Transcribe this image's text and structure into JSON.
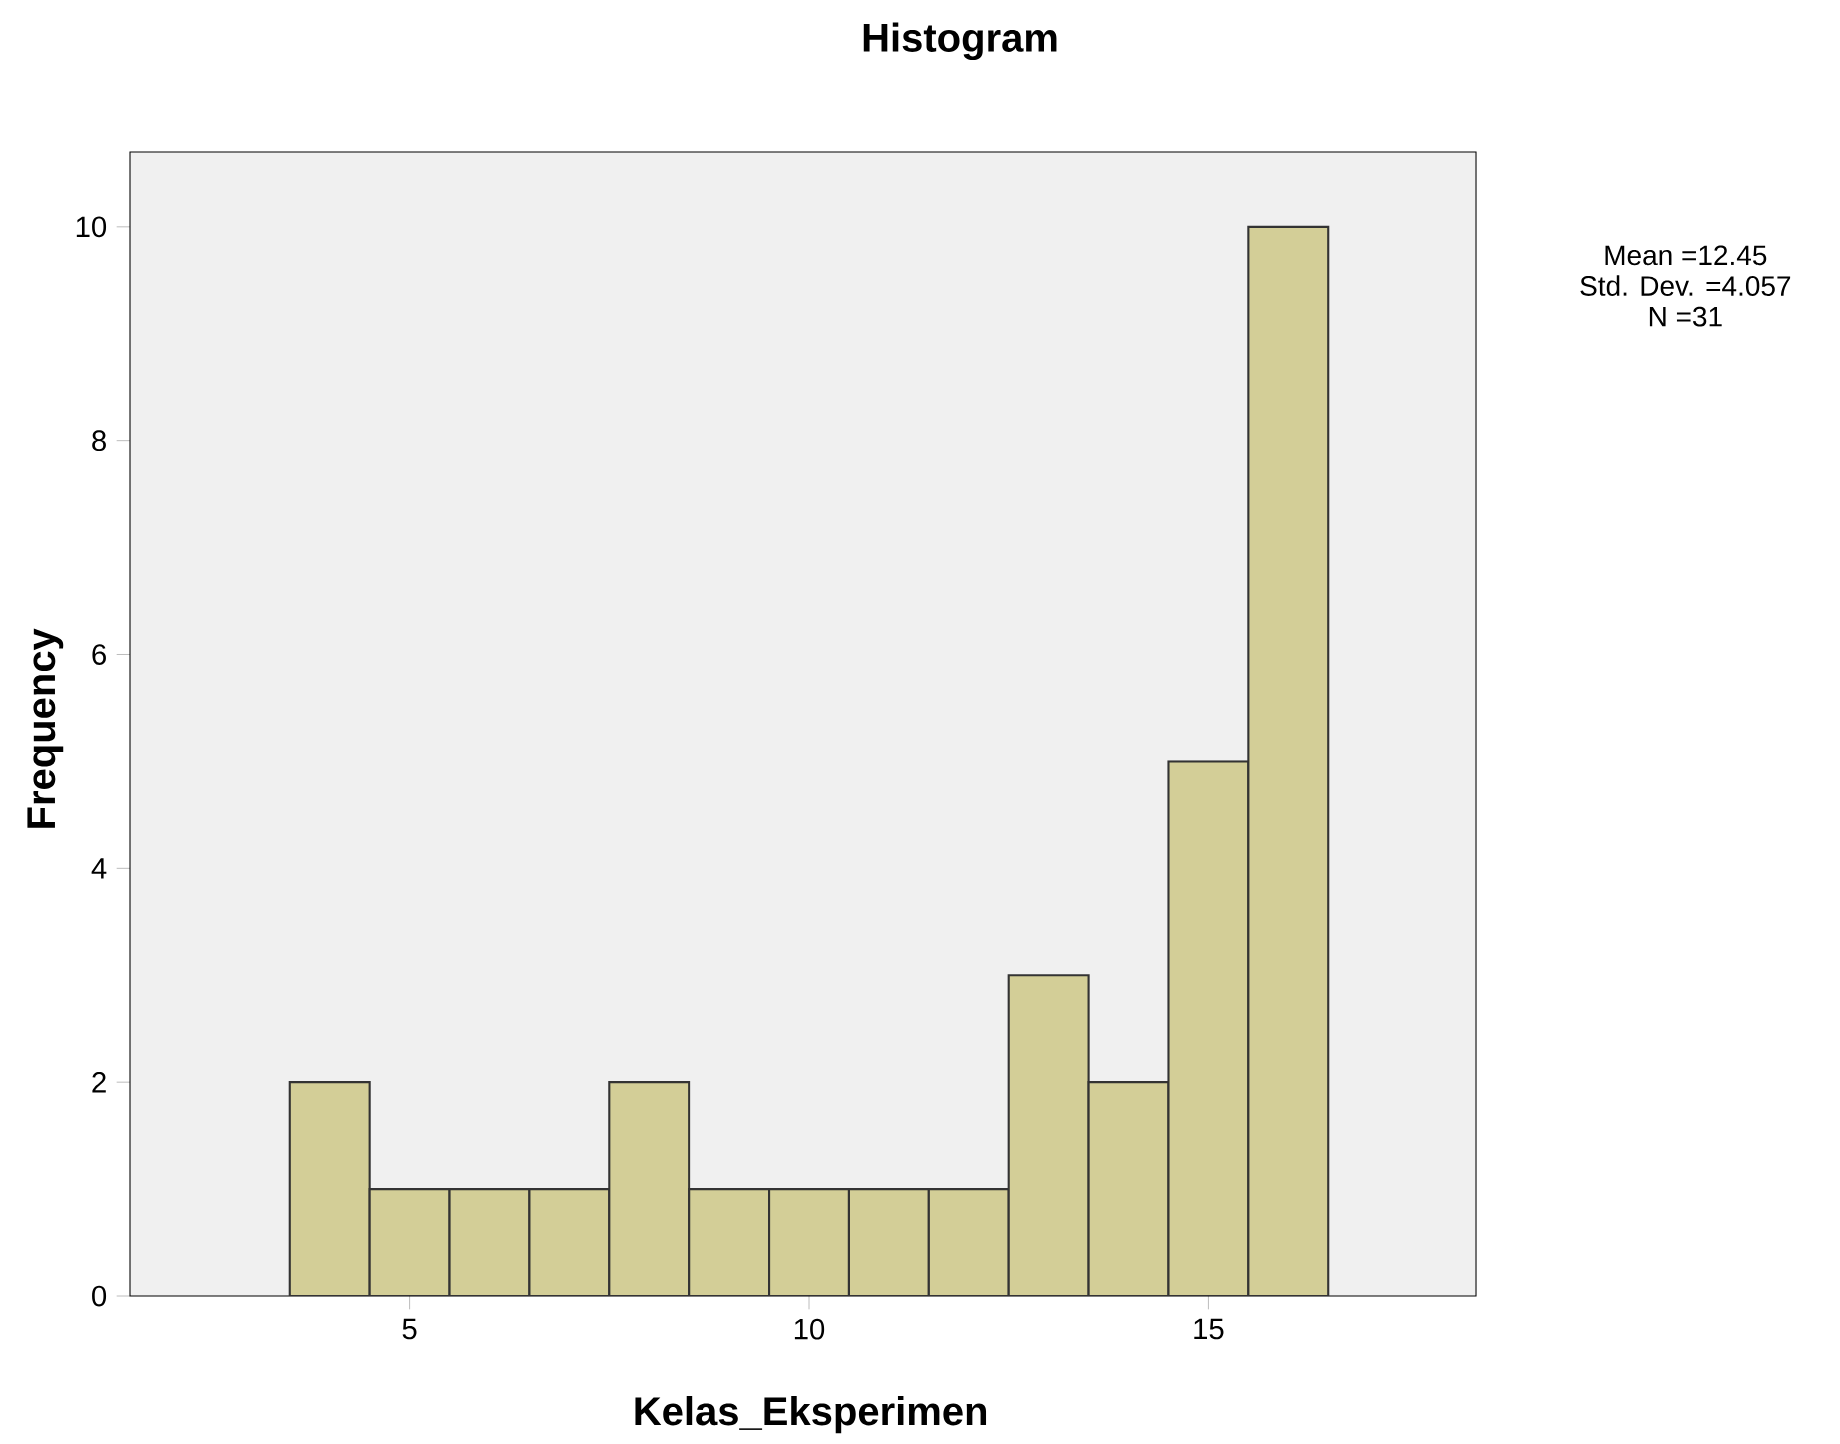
{
  "chart_data": {
    "type": "histogram",
    "title": "Histogram",
    "xlabel": "Kelas_Eksperimen",
    "ylabel": "Frequency",
    "bins": [
      3.5,
      4.5,
      5.5,
      6.5,
      7.5,
      8.5,
      9.5,
      10.5,
      11.5,
      12.5,
      13.5,
      14.5,
      15.5,
      16.5
    ],
    "values": [
      2,
      1,
      1,
      1,
      2,
      1,
      1,
      1,
      1,
      3,
      2,
      5,
      10
    ],
    "color": "#d3ce97",
    "xlim": [
      1.5,
      18.35
    ],
    "ylim": [
      0,
      10.7
    ],
    "xticks": [
      5,
      10,
      15
    ],
    "yticks": [
      0,
      2,
      4,
      6,
      8,
      10
    ],
    "annotations": [
      "Mean =12.45",
      "Std. Dev. =4.057",
      "N =31"
    ]
  }
}
